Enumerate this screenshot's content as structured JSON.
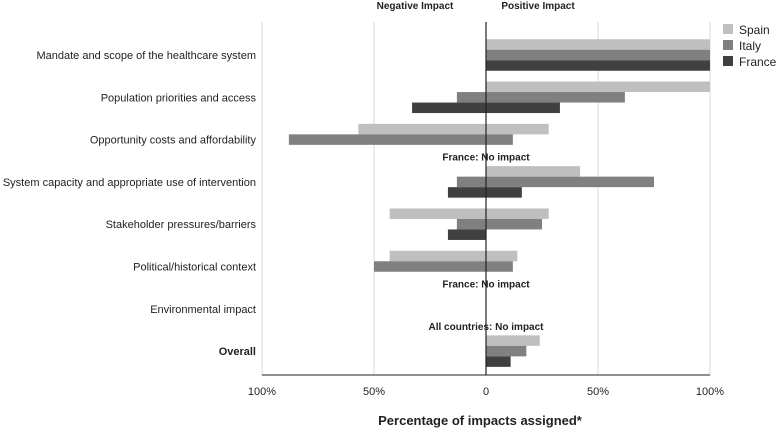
{
  "chart_data": {
    "type": "bar",
    "orientation": "horizontal",
    "title": "",
    "xlabel": "Percentage of impacts assigned*",
    "header_negative": "Negative Impact",
    "header_positive": "Positive Impact",
    "xlim": [
      -100,
      100
    ],
    "xticks": [
      {
        "value": -100,
        "label": "100%"
      },
      {
        "value": -50,
        "label": "50%"
      },
      {
        "value": 0,
        "label": "0"
      },
      {
        "value": 50,
        "label": "50%"
      },
      {
        "value": 100,
        "label": "100%"
      }
    ],
    "categories": [
      {
        "label": "Mandate and scope of the healthcare system",
        "bold": false
      },
      {
        "label": "Population priorities and access",
        "bold": false
      },
      {
        "label": "Opportunity costs and affordability",
        "bold": false
      },
      {
        "label": "System capacity and appropriate use of intervention",
        "bold": false
      },
      {
        "label": "Stakeholder pressures/barriers",
        "bold": false
      },
      {
        "label": "Political/historical context",
        "bold": false
      },
      {
        "label": "Environmental impact",
        "bold": false
      },
      {
        "label": "Overall",
        "bold": true
      }
    ],
    "series": [
      {
        "name": "Spain",
        "color": "#bfbfbf",
        "negative": [
          0,
          0,
          -57,
          0,
          -43,
          -43,
          0,
          0
        ],
        "positive": [
          100,
          100,
          28,
          42,
          28,
          14,
          0,
          24
        ]
      },
      {
        "name": "Italy",
        "color": "#808080",
        "negative": [
          0,
          -13,
          -88,
          -13,
          -13,
          -50,
          0,
          0
        ],
        "positive": [
          100,
          62,
          12,
          75,
          25,
          12,
          0,
          18
        ]
      },
      {
        "name": "France",
        "color": "#404040",
        "negative": [
          0,
          -33,
          0,
          -17,
          -17,
          0,
          0,
          0
        ],
        "positive": [
          100,
          33,
          0,
          16,
          0,
          0,
          0,
          11
        ]
      }
    ],
    "annotations": [
      {
        "category_index": 2,
        "text": "France: No impact"
      },
      {
        "category_index": 5,
        "text": "France: No impact"
      },
      {
        "category_index": 6,
        "text": "All countries: No impact"
      }
    ],
    "grid": true,
    "legend_position": "top-right"
  }
}
